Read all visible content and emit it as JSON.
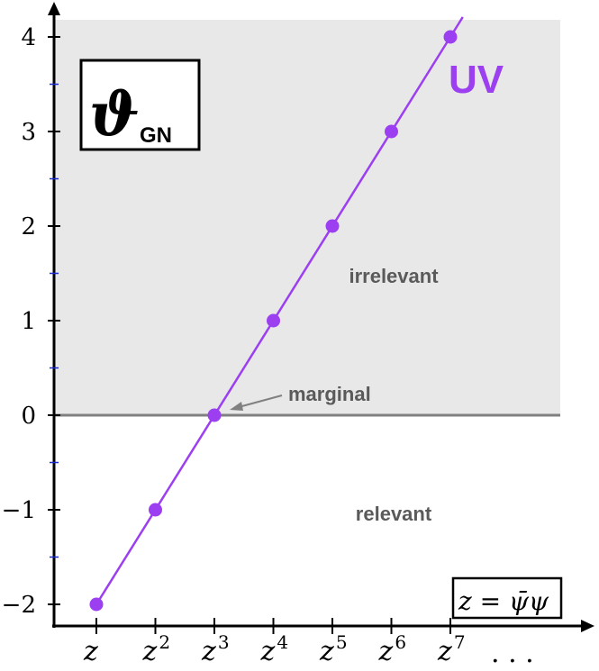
{
  "chart_data": {
    "type": "line",
    "title": "ϑ",
    "title_subscript": "GN",
    "xlabel_box": {
      "lhs": "z = ",
      "psibar": "ψ̄",
      "psi": "ψ"
    },
    "x_ticks": [
      {
        "base": "z",
        "exp": ""
      },
      {
        "base": "z",
        "exp": "2"
      },
      {
        "base": "z",
        "exp": "3"
      },
      {
        "base": "z",
        "exp": "4"
      },
      {
        "base": "z",
        "exp": "5"
      },
      {
        "base": "z",
        "exp": "6"
      },
      {
        "base": "z",
        "exp": "7"
      }
    ],
    "x_ellipsis": ". . .",
    "y_ticks": [
      "−2",
      "−1",
      "0",
      "1",
      "2",
      "3",
      "4"
    ],
    "ylim": [
      -2,
      4
    ],
    "series": [
      {
        "label": "UV",
        "x": [
          1,
          2,
          3,
          4,
          5,
          6,
          7
        ],
        "values": [
          -2,
          -1,
          0,
          1,
          2,
          3,
          4
        ]
      }
    ],
    "regions": {
      "irrelevant": "irrelevant",
      "relevant": "relevant",
      "marginal": "marginal"
    },
    "colors": {
      "series": "#9B3FF0",
      "shade": "#E8E8E8",
      "zero_line": "#808080",
      "minor_tick": "#1a2bd6",
      "region_text": "#5a5a5a"
    }
  }
}
